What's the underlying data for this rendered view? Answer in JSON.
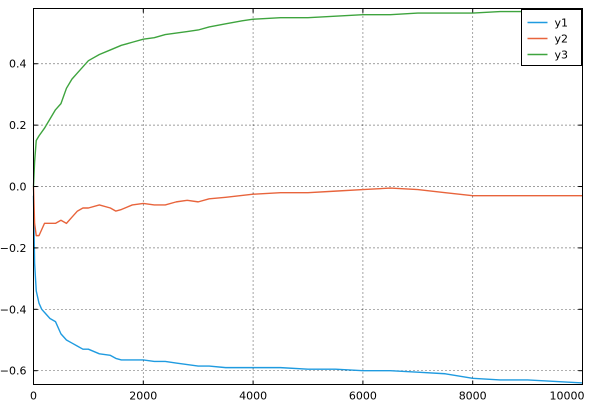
{
  "chart_data": {
    "type": "line",
    "title": "",
    "xlabel": "",
    "ylabel": "",
    "xlim": [
      0,
      10000
    ],
    "ylim": [
      -0.645,
      0.58
    ],
    "xticks": [
      0,
      2000,
      4000,
      6000,
      8000,
      10000
    ],
    "xtick_labels": [
      "0",
      "2000",
      "4000",
      "6000",
      "8000",
      "10000"
    ],
    "yticks": [
      -0.6,
      -0.4,
      -0.2,
      0.0,
      0.2,
      0.4
    ],
    "ytick_labels": [
      "−0.6",
      "−0.4",
      "−0.2",
      "0.0",
      "0.2",
      "0.4"
    ],
    "grid": true,
    "legend": {
      "location": "upper right",
      "entries": [
        "y1",
        "y2",
        "y3"
      ]
    },
    "series": [
      {
        "name": "y1",
        "color": "#1f9be0",
        "x": [
          0,
          20,
          50,
          100,
          150,
          200,
          300,
          400,
          500,
          600,
          700,
          800,
          900,
          1000,
          1200,
          1400,
          1500,
          1600,
          1800,
          2000,
          2200,
          2400,
          2600,
          2800,
          3000,
          3200,
          3500,
          4000,
          4500,
          5000,
          5500,
          6000,
          6500,
          7000,
          7500,
          8000,
          8500,
          9000,
          9500,
          10000
        ],
        "y": [
          -0.03,
          -0.25,
          -0.34,
          -0.38,
          -0.4,
          -0.41,
          -0.43,
          -0.44,
          -0.48,
          -0.5,
          -0.51,
          -0.52,
          -0.53,
          -0.53,
          -0.545,
          -0.55,
          -0.56,
          -0.565,
          -0.565,
          -0.565,
          -0.57,
          -0.57,
          -0.575,
          -0.58,
          -0.585,
          -0.585,
          -0.59,
          -0.59,
          -0.59,
          -0.595,
          -0.595,
          -0.6,
          -0.6,
          -0.605,
          -0.61,
          -0.625,
          -0.63,
          -0.63,
          -0.635,
          -0.64
        ]
      },
      {
        "name": "y2",
        "color": "#e8643c",
        "x": [
          0,
          20,
          50,
          100,
          200,
          300,
          400,
          500,
          600,
          700,
          800,
          900,
          1000,
          1200,
          1400,
          1500,
          1600,
          1800,
          2000,
          2200,
          2400,
          2600,
          2800,
          3000,
          3200,
          3500,
          4000,
          4500,
          5000,
          5500,
          6000,
          6500,
          7000,
          7500,
          8000,
          8500,
          9000,
          9500,
          10000
        ],
        "y": [
          0.0,
          -0.12,
          -0.16,
          -0.16,
          -0.12,
          -0.12,
          -0.12,
          -0.11,
          -0.12,
          -0.1,
          -0.08,
          -0.07,
          -0.07,
          -0.06,
          -0.07,
          -0.08,
          -0.075,
          -0.06,
          -0.055,
          -0.06,
          -0.06,
          -0.05,
          -0.045,
          -0.05,
          -0.04,
          -0.035,
          -0.025,
          -0.02,
          -0.02,
          -0.015,
          -0.01,
          -0.005,
          -0.01,
          -0.02,
          -0.03,
          -0.03,
          -0.03,
          -0.03,
          -0.03
        ]
      },
      {
        "name": "y3",
        "color": "#3ea43e",
        "x": [
          0,
          20,
          50,
          100,
          200,
          300,
          400,
          500,
          600,
          700,
          800,
          900,
          1000,
          1200,
          1400,
          1600,
          1800,
          2000,
          2200,
          2400,
          2600,
          2800,
          3000,
          3200,
          3500,
          3800,
          4000,
          4500,
          5000,
          5500,
          6000,
          6500,
          7000,
          7500,
          8000,
          8500,
          9000,
          9500,
          10000
        ],
        "y": [
          0.0,
          0.08,
          0.15,
          0.165,
          0.19,
          0.22,
          0.25,
          0.27,
          0.32,
          0.35,
          0.37,
          0.39,
          0.41,
          0.43,
          0.445,
          0.46,
          0.47,
          0.48,
          0.485,
          0.495,
          0.5,
          0.505,
          0.51,
          0.52,
          0.53,
          0.54,
          0.545,
          0.55,
          0.55,
          0.555,
          0.56,
          0.56,
          0.565,
          0.565,
          0.565,
          0.57,
          0.57,
          0.57,
          0.575
        ]
      }
    ]
  }
}
